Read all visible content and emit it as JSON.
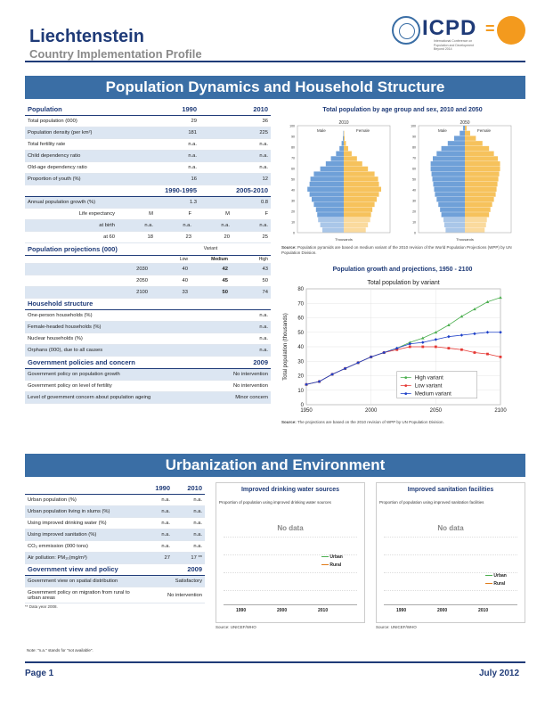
{
  "header": {
    "country": "Liechtenstein",
    "subtitle": "Country Implementation Profile",
    "logo_text": "ICPD",
    "logo_eq": "=",
    "logo_tagline": "International Conference on Population and Development Beyond 2014"
  },
  "section1": {
    "title": "Population Dynamics and Household Structure"
  },
  "population": {
    "header": [
      "Population",
      "1990",
      "2010"
    ],
    "rows": [
      [
        "Total population (000)",
        "29",
        "36"
      ],
      [
        "Population density (per km²)",
        "181",
        "225"
      ],
      [
        "Total fertility rate",
        "n.a.",
        "n.a."
      ],
      [
        "Child dependency ratio",
        "n.a.",
        "n.a."
      ],
      [
        "Old-age dependency ratio",
        "n.a.",
        "n.a."
      ],
      [
        "Proportion of youth (%)",
        "16",
        "12"
      ]
    ],
    "period_header": [
      "",
      "1990-1995",
      "2005-2010"
    ],
    "growth": [
      "Annual population growth (%)",
      "1.3",
      "0.8"
    ],
    "life_exp_label": "Life expectancy",
    "mf": [
      "M",
      "F",
      "M",
      "F"
    ],
    "at_birth": [
      "at birth",
      "n.a.",
      "n.a.",
      "n.a.",
      "n.a."
    ],
    "at_60": [
      "at 60",
      "18",
      "23",
      "20",
      "25"
    ]
  },
  "projections": {
    "title": "Population projections (000)",
    "variant_label": "Variant",
    "variants": [
      "Low",
      "Medium",
      "High"
    ],
    "rows": [
      [
        "2030",
        "40",
        "42",
        "43"
      ],
      [
        "2050",
        "40",
        "45",
        "50"
      ],
      [
        "2100",
        "33",
        "50",
        "74"
      ]
    ]
  },
  "household": {
    "title": "Household structure",
    "rows": [
      [
        "One-person households (%)",
        "n.a."
      ],
      [
        "Female-headed households (%)",
        "n.a."
      ],
      [
        "Nuclear households (%)",
        "n.a."
      ],
      [
        "Orphans (000), due to all causes",
        "n.a."
      ]
    ]
  },
  "policies": {
    "title": "Government policies and concern",
    "year": "2009",
    "rows": [
      [
        "Government policy on population growth",
        "No intervention"
      ],
      [
        "Government policy on level of fertility",
        "No intervention"
      ],
      [
        "Level of government concern about population ageing",
        "Minor concern"
      ]
    ]
  },
  "pyramid": {
    "title": "Total population by age group and sex, 2010 and 2050",
    "years": [
      "2010",
      "2050"
    ],
    "male": "Male",
    "female": "Female",
    "age_ticks": [
      "0",
      "10",
      "20",
      "30",
      "40",
      "50",
      "60",
      "70",
      "80",
      "90",
      "100"
    ],
    "xlabel": "Thousands",
    "source_label": "Source:",
    "source": "Population pyramids are based on medium variant of the 2010 revision of the World Population Projections (WPP) by UN Population Division."
  },
  "growth_chart": {
    "title": "Population growth and projections, 1950 - 2100",
    "source_label": "Source:",
    "source": "The projections are based on the 2010 revision of WPP by UN Population Division."
  },
  "chart_data": {
    "type": "line",
    "title": "Total population by variant",
    "xlabel": "",
    "ylabel": "Total population (thousands)",
    "xlim": [
      1950,
      2100
    ],
    "ylim": [
      0,
      80
    ],
    "xticks": [
      1950,
      2000,
      2050,
      2100
    ],
    "yticks": [
      0,
      10,
      20,
      30,
      40,
      50,
      60,
      70,
      80
    ],
    "grid": true,
    "legend_position": "bottom-right",
    "series": [
      {
        "name": "High variant",
        "color": "#4caf50",
        "marker": "triangle",
        "x": [
          1950,
          1960,
          1970,
          1980,
          1990,
          2000,
          2010,
          2020,
          2030,
          2040,
          2050,
          2060,
          2070,
          2080,
          2090,
          2100
        ],
        "y": [
          14,
          16,
          21,
          25,
          29,
          33,
          36,
          39,
          43,
          46,
          50,
          55,
          61,
          66,
          71,
          74
        ]
      },
      {
        "name": "Low variant",
        "color": "#e53935",
        "marker": "square",
        "x": [
          1950,
          1960,
          1970,
          1980,
          1990,
          2000,
          2010,
          2020,
          2030,
          2040,
          2050,
          2060,
          2070,
          2080,
          2090,
          2100
        ],
        "y": [
          14,
          16,
          21,
          25,
          29,
          33,
          36,
          38,
          40,
          40,
          40,
          39,
          38,
          36,
          35,
          33
        ]
      },
      {
        "name": "Medium variant",
        "color": "#1e40c8",
        "marker": "diamond",
        "x": [
          1950,
          1960,
          1970,
          1980,
          1990,
          2000,
          2010,
          2020,
          2030,
          2040,
          2050,
          2060,
          2070,
          2080,
          2090,
          2100
        ],
        "y": [
          14,
          16,
          21,
          25,
          29,
          33,
          36,
          39,
          42,
          43,
          45,
          47,
          48,
          49,
          50,
          50
        ]
      }
    ]
  },
  "section2": {
    "title": "Urbanization and Environment"
  },
  "urban": {
    "header": [
      "",
      "1990",
      "2010"
    ],
    "rows": [
      [
        "Urban population (%)",
        "n.a.",
        "n.a."
      ],
      [
        "Urban population living in slums (%)",
        "n.a.",
        "n.a."
      ],
      [
        "Using improved drinking water (%)",
        "n.a.",
        "n.a."
      ],
      [
        "Using improved sanitation (%)",
        "n.a.",
        "n.a."
      ],
      [
        "CO₂ emmission (000 tons)",
        "n.a.",
        "n.a."
      ],
      [
        "Air pollution: PM₁₀(mg/m³)",
        "27",
        "17 **"
      ]
    ],
    "view_title": "Government view and policy",
    "view_year": "2009",
    "view_rows": [
      [
        "Government view on spatial distribution",
        "Satisfactory"
      ],
      [
        "Government policy on migration from rural to urban areas",
        "No intervention"
      ]
    ],
    "footnote": "** Data year 2008."
  },
  "water": {
    "title": "Improved drinking water sources",
    "subtitle": "Proportion of population using improved drinking water sources",
    "nodata": "No data",
    "legend": [
      "Urban",
      "Rural"
    ],
    "x": [
      "1990",
      "2000",
      "2010"
    ],
    "source": "Source: UNICEF/WHO"
  },
  "sanitation": {
    "title": "Improved sanitation facilities",
    "subtitle": "Proportion of population using improved sanitation facilities",
    "nodata": "No data",
    "legend": [
      "Urban",
      "Rural"
    ],
    "x": [
      "1990",
      "2000",
      "2010"
    ],
    "source": "Source: UNICEF/WHO"
  },
  "footer": {
    "note": "Note: \"n.a.\" stands for \"not available\".",
    "page": "Page 1",
    "date": "July 2012"
  },
  "colors": {
    "navy": "#1f3b78",
    "banner": "#3a6ea5",
    "male": "#6fa0d8",
    "female": "#f6c25c",
    "orange": "#f39a1e"
  }
}
